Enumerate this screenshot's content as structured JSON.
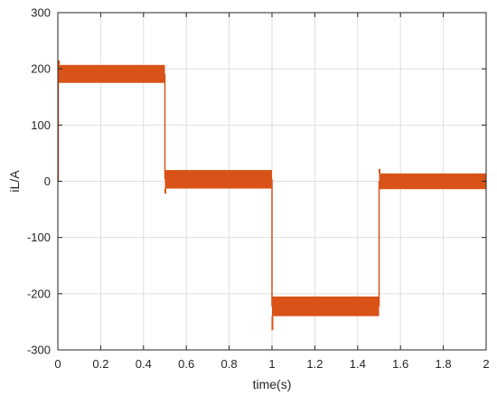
{
  "chart_data": {
    "type": "line",
    "title": "",
    "xlabel": "time(s)",
    "ylabel": "iL/A",
    "xlim": [
      0,
      2
    ],
    "ylim": [
      -300,
      300
    ],
    "xticks": [
      0,
      0.2,
      0.4,
      0.6,
      0.8,
      1,
      1.2,
      1.4,
      1.6,
      1.8,
      2
    ],
    "xtick_labels": [
      "0",
      "0.2",
      "0.4",
      "0.6",
      "0.8",
      "1",
      "1.2",
      "1.4",
      "1.6",
      "1.8",
      "2"
    ],
    "yticks": [
      -300,
      -200,
      -100,
      0,
      100,
      200,
      300
    ],
    "ytick_labels": [
      "-300",
      "-200",
      "-100",
      "0",
      "100",
      "200",
      "300"
    ],
    "grid": true,
    "series_color": "#d95319",
    "series": [
      {
        "segments": [
          {
            "x": [
              0,
              0.5
            ],
            "ymin": 175,
            "ymax": 207,
            "spikes": [
              {
                "x": 0.005,
                "y": 215
              }
            ]
          },
          {
            "x": [
              0.5,
              1.0
            ],
            "ymin": -13,
            "ymax": 20,
            "spikes": [
              {
                "x": 0.502,
                "y": -22
              }
            ]
          },
          {
            "x": [
              1.0,
              1.5
            ],
            "ymin": -240,
            "ymax": -205,
            "spikes": [
              {
                "x": 1.002,
                "y": -265
              }
            ]
          },
          {
            "x": [
              1.5,
              2.0
            ],
            "ymin": -14,
            "ymax": 14,
            "spikes": [
              {
                "x": 1.502,
                "y": 22
              }
            ]
          }
        ]
      }
    ]
  }
}
